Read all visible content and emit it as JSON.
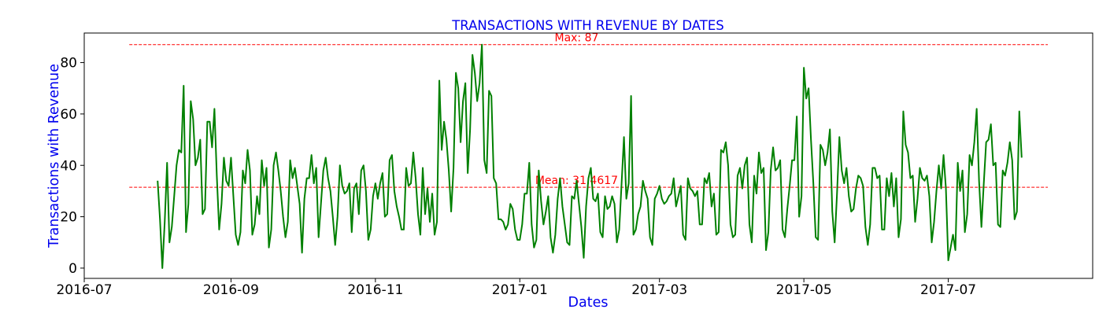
{
  "chart_data": {
    "type": "line",
    "title": "TRANSACTIONS WITH REVENUE BY DATES",
    "xlabel": "Dates",
    "ylabel": "Transactions with Revenue",
    "xlim": [
      "2016-07-01",
      "2017-08-31"
    ],
    "ylim": [
      -4,
      91.5
    ],
    "grid": false,
    "x_ticks": [
      "2016-07",
      "2016-09",
      "2016-11",
      "2017-01",
      "2017-03",
      "2017-05",
      "2017-07"
    ],
    "y_ticks": [
      0,
      20,
      40,
      60,
      80
    ],
    "series": [
      {
        "color": "#008000",
        "x_start": "2016-08-01",
        "x_step": "1 day",
        "values": [
          34,
          19,
          0,
          18,
          41,
          10,
          16,
          28,
          40,
          46,
          45,
          71,
          14,
          25,
          65,
          58,
          40,
          43,
          50,
          21,
          23,
          57,
          57,
          47,
          62,
          36,
          15,
          25,
          43,
          34,
          32,
          43,
          28,
          13,
          9,
          14,
          38,
          33,
          46,
          38,
          13,
          17,
          28,
          21,
          42,
          32,
          39,
          8,
          15,
          40,
          45,
          38,
          30,
          20,
          12,
          18,
          42,
          35,
          39,
          32,
          25,
          6,
          27,
          35,
          35,
          44,
          33,
          39,
          12,
          25,
          38,
          43,
          35,
          30,
          20,
          9,
          20,
          40,
          32,
          29,
          30,
          33,
          14,
          31,
          33,
          21,
          38,
          40,
          30,
          11,
          15,
          28,
          33,
          27,
          33,
          37,
          20,
          21,
          42,
          44,
          30,
          24,
          20,
          15,
          15,
          39,
          32,
          33,
          45,
          35,
          21,
          13,
          39,
          21,
          31,
          18,
          29,
          13,
          18,
          73,
          46,
          57,
          50,
          38,
          22,
          39,
          76,
          70,
          49,
          65,
          72,
          37,
          54,
          83,
          76,
          65,
          72,
          87,
          42,
          37,
          69,
          67,
          35,
          33,
          19,
          19,
          18,
          15,
          17,
          25,
          23,
          15,
          11,
          11,
          17,
          29,
          29,
          41,
          17,
          8,
          11,
          38,
          26,
          17,
          22,
          28,
          12,
          6,
          13,
          27,
          35,
          24,
          17,
          10,
          9,
          28,
          27,
          34,
          25,
          16,
          4,
          24,
          35,
          39,
          27,
          26,
          29,
          14,
          12,
          28,
          23,
          24,
          28,
          25,
          10,
          15,
          33,
          51,
          27,
          33,
          67,
          13,
          15,
          21,
          24,
          34,
          30,
          27,
          12,
          9,
          27,
          29,
          32,
          27,
          25,
          26,
          28,
          29,
          35,
          24,
          28,
          32,
          13,
          11,
          35,
          31,
          30,
          28,
          30,
          17,
          17,
          35,
          33,
          37,
          24,
          29,
          13,
          14,
          46,
          45,
          49,
          40,
          17,
          12,
          13,
          36,
          39,
          31,
          40,
          43,
          17,
          10,
          36,
          29,
          45,
          37,
          39,
          7,
          14,
          38,
          47,
          38,
          39,
          42,
          15,
          12,
          23,
          32,
          42,
          42,
          59,
          20,
          28,
          78,
          66,
          70,
          50,
          33,
          12,
          11,
          48,
          46,
          40,
          45,
          54,
          22,
          10,
          29,
          51,
          38,
          33,
          39,
          28,
          22,
          23,
          31,
          36,
          35,
          32,
          16,
          9,
          17,
          39,
          39,
          35,
          36,
          15,
          15,
          35,
          28,
          37,
          24,
          35,
          12,
          19,
          61,
          48,
          45,
          35,
          36,
          18,
          27,
          39,
          35,
          34,
          36,
          28,
          10,
          18,
          30,
          40,
          31,
          44,
          31,
          3,
          8,
          13,
          7,
          41,
          30,
          38,
          14,
          21,
          44,
          40,
          49,
          62,
          34,
          16,
          33,
          49,
          50,
          56,
          40,
          41,
          17,
          16,
          38,
          36,
          41,
          49,
          42,
          19,
          22,
          61,
          43
        ]
      }
    ],
    "reference_lines": [
      {
        "y": 87,
        "label": "Max: 87",
        "color": "#ff0000",
        "style": "dashed"
      },
      {
        "y": 31.4617,
        "label": "Mean: 31.4617",
        "color": "#ff0000",
        "style": "dashed"
      }
    ],
    "colors": {
      "title": "#0000ee",
      "axis_labels": "#0000ee",
      "line": "#008000",
      "reference": "#ff0000"
    }
  }
}
